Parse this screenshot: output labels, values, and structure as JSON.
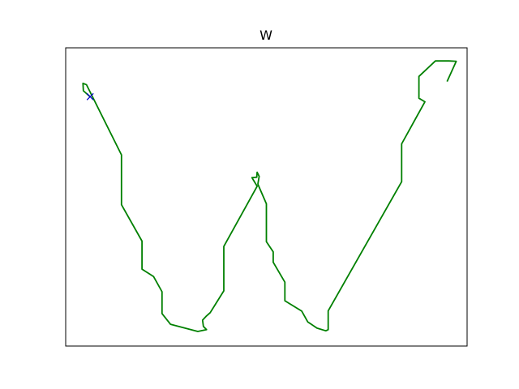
{
  "chart_data": {
    "type": "line",
    "title": "W",
    "xlabel": "",
    "ylabel": "",
    "grid": false,
    "legend": "none",
    "axis_ticks": false,
    "xlim": [
      0,
      1
    ],
    "ylim": [
      0,
      1
    ],
    "series": [
      {
        "color": "#008000",
        "style": "solid line",
        "x": [
          0.061,
          0.044,
          0.043,
          0.052,
          0.139,
          0.139,
          0.19,
          0.19,
          0.219,
          0.24,
          0.24,
          0.261,
          0.329,
          0.351,
          0.343,
          0.341,
          0.351,
          0.36,
          0.394,
          0.394,
          0.477,
          0.466,
          0.464,
          0.476,
          0.477,
          0.482,
          0.479,
          0.479,
          0.5,
          0.5,
          0.517,
          0.517,
          0.546,
          0.546,
          0.588,
          0.603,
          0.626,
          0.648,
          0.654,
          0.654,
          0.837,
          0.837,
          0.895,
          0.88,
          0.88,
          0.921,
          0.955,
          0.973,
          0.95
        ],
        "y": [
          0.836,
          0.856,
          0.881,
          0.876,
          0.641,
          0.474,
          0.352,
          0.258,
          0.233,
          0.182,
          0.109,
          0.073,
          0.049,
          0.055,
          0.066,
          0.087,
          0.101,
          0.112,
          0.185,
          0.334,
          0.536,
          0.56,
          0.565,
          0.566,
          0.583,
          0.569,
          0.545,
          0.542,
          0.477,
          0.35,
          0.316,
          0.281,
          0.214,
          0.152,
          0.117,
          0.081,
          0.06,
          0.051,
          0.055,
          0.118,
          0.551,
          0.678,
          0.819,
          0.831,
          0.904,
          0.956,
          0.956,
          0.955,
          0.887
        ]
      },
      {
        "color": "#0000cc",
        "style": "x marker",
        "x": [
          0.061
        ],
        "y": [
          0.836
        ]
      }
    ]
  }
}
